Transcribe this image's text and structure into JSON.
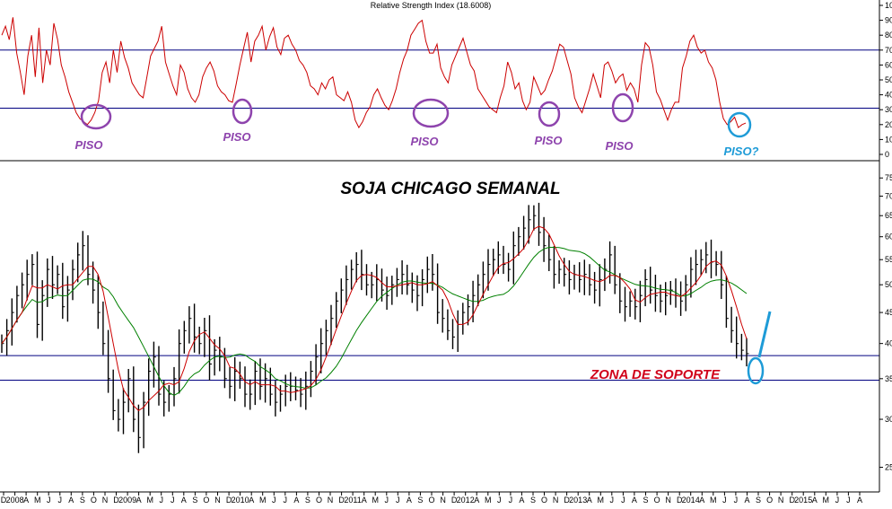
{
  "chart_data": [
    {
      "type": "line",
      "title": "Relative Strength Index (18.6008)",
      "ylim": [
        0,
        100
      ],
      "y_ticks": [
        "100",
        "90",
        "80",
        "70",
        "60",
        "50",
        "40",
        "30",
        "20",
        "10",
        "0"
      ],
      "reference_lines": [
        70,
        31
      ],
      "colors": {
        "rsi": "#cc0000",
        "reference": "#000080"
      },
      "series": [
        {
          "values": [
            80,
            86,
            77,
            92,
            68,
            55,
            40,
            66,
            80,
            52,
            85,
            48,
            70,
            60,
            88,
            77,
            60,
            52,
            42,
            35,
            28,
            24,
            22,
            20,
            23,
            28,
            36,
            55,
            62,
            48,
            70,
            55,
            76,
            65,
            58,
            48,
            44,
            40,
            38,
            52,
            66,
            71,
            76,
            86,
            62,
            54,
            46,
            40,
            60,
            55,
            44,
            38,
            35,
            40,
            52,
            58,
            62,
            56,
            46,
            42,
            40,
            36,
            35,
            47,
            60,
            71,
            82,
            62,
            76,
            80,
            86,
            70,
            79,
            85,
            72,
            67,
            78,
            80,
            74,
            70,
            63,
            60,
            55,
            46,
            44,
            40,
            48,
            44,
            50,
            52,
            40,
            38,
            36,
            42,
            35,
            23,
            18,
            22,
            28,
            32,
            40,
            44,
            38,
            33,
            30,
            36,
            44,
            55,
            64,
            70,
            80,
            84,
            88,
            90,
            76,
            68,
            68,
            74,
            58,
            52,
            48,
            60,
            66,
            72,
            78,
            69,
            60,
            56,
            44,
            40,
            36,
            32,
            30,
            28,
            38,
            46,
            62,
            55,
            44,
            48,
            36,
            30,
            35,
            52,
            46,
            40,
            43,
            50,
            56,
            65,
            74,
            72,
            63,
            54,
            38,
            32,
            28,
            36,
            44,
            54,
            46,
            38,
            60,
            62,
            56,
            48,
            52,
            54,
            43,
            48,
            44,
            35,
            60,
            75,
            72,
            60,
            42,
            37,
            30,
            23,
            30,
            35,
            35,
            58,
            66,
            76,
            80,
            72,
            68,
            70,
            62,
            58,
            50,
            35,
            24,
            20,
            22,
            25,
            18,
            20,
            21
          ]
        }
      ],
      "annotations": [
        "PISO",
        "PISO",
        "PISO",
        "PISO",
        "PISO",
        "PISO?"
      ],
      "annotation_colors": [
        "#8e44ad",
        "#8e44ad",
        "#8e44ad",
        "#8e44ad",
        "#8e44ad",
        "#1e9bd7"
      ]
    },
    {
      "type": "line",
      "title": "SOJA CHICAGO SEMANAL",
      "y_scale": "log",
      "ylim": [
        230,
        790
      ],
      "y_ticks": [
        "750",
        "700",
        "650",
        "600",
        "550",
        "500",
        "450",
        "400",
        "350",
        "300",
        "250"
      ],
      "support_lines": [
        382,
        348
      ],
      "annotation": "ZONA DE SOPORTE",
      "x_ticks": [
        "D",
        "2008",
        "A",
        "M",
        "J",
        "J",
        "A",
        "S",
        "O",
        "N",
        "D",
        "2009",
        "A",
        "M",
        "J",
        "J",
        "A",
        "S",
        "O",
        "N",
        "D",
        "2010",
        "A",
        "M",
        "J",
        "J",
        "A",
        "S",
        "O",
        "N",
        "D",
        "2011",
        "A",
        "M",
        "J",
        "J",
        "A",
        "S",
        "O",
        "N",
        "D",
        "2012",
        "A",
        "M",
        "J",
        "J",
        "A",
        "S",
        "O",
        "N",
        "D",
        "2013",
        "A",
        "M",
        "J",
        "J",
        "A",
        "S",
        "O",
        "N",
        "D",
        "2014",
        "A",
        "M",
        "J",
        "J",
        "A",
        "S",
        "O",
        "N",
        "D",
        "2015",
        "A",
        "M",
        "J",
        "J",
        "A"
      ],
      "colors": {
        "price": "#000000",
        "fast_ma": "#cc0000",
        "slow_ma": "#008000",
        "support": "#000080",
        "arrow": "#1e9bd7"
      },
      "series": [
        {
          "values": [
            400,
            420,
            450,
            480,
            500,
            520,
            540,
            430,
            480,
            530,
            500,
            520,
            460,
            490,
            530,
            560,
            580,
            520,
            490,
            450,
            400,
            350,
            310,
            300,
            320,
            350,
            300,
            280,
            320,
            360,
            380,
            330,
            320,
            330,
            350,
            400,
            420,
            440,
            410,
            400,
            420,
            370,
            390,
            380,
            350,
            340,
            360,
            350,
            330,
            330,
            360,
            340,
            350,
            330,
            320,
            330,
            340,
            340,
            335,
            330,
            340,
            360,
            380,
            400,
            420,
            440,
            470,
            490,
            510,
            530,
            540,
            520,
            500,
            500,
            510,
            490,
            480,
            500,
            510,
            520,
            500,
            490,
            480,
            510,
            530,
            520,
            450,
            440,
            420,
            410,
            430,
            450,
            460,
            480,
            500,
            520,
            540,
            550,
            560,
            540,
            530,
            580,
            600,
            620,
            640,
            650,
            610,
            580,
            550,
            520,
            530,
            520,
            510,
            520,
            510,
            520,
            500,
            490,
            510,
            530,
            560,
            500,
            470,
            460,
            470,
            460,
            480,
            510,
            490,
            480,
            470,
            480,
            490,
            480,
            470,
            500,
            530,
            540,
            550,
            560,
            545,
            540,
            500,
            440,
            420,
            400,
            390,
            385
          ]
        },
        {
          "values": []
        },
        {
          "values": []
        }
      ]
    }
  ]
}
